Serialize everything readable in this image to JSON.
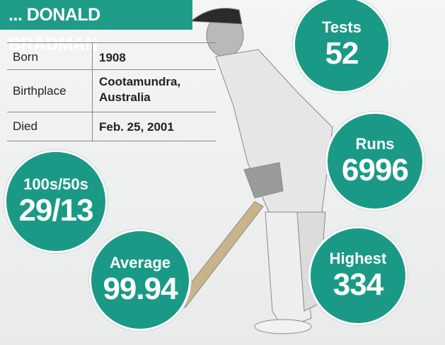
{
  "header": {
    "title": "... DONALD BRADMAN"
  },
  "table": {
    "rows": [
      [
        "Born",
        "1908"
      ],
      [
        "Birthplace",
        "Cootamundra, Australia"
      ],
      [
        "Died",
        "Feb. 25, 2001"
      ]
    ]
  },
  "stats": [
    {
      "label": "Tests",
      "value": 52
    },
    {
      "label": "Runs",
      "value": 6996
    },
    {
      "label": "100s/50s",
      "value": "29/13"
    },
    {
      "label": "Average",
      "value": 99.94
    },
    {
      "label": "Highest",
      "value": 334
    }
  ]
}
